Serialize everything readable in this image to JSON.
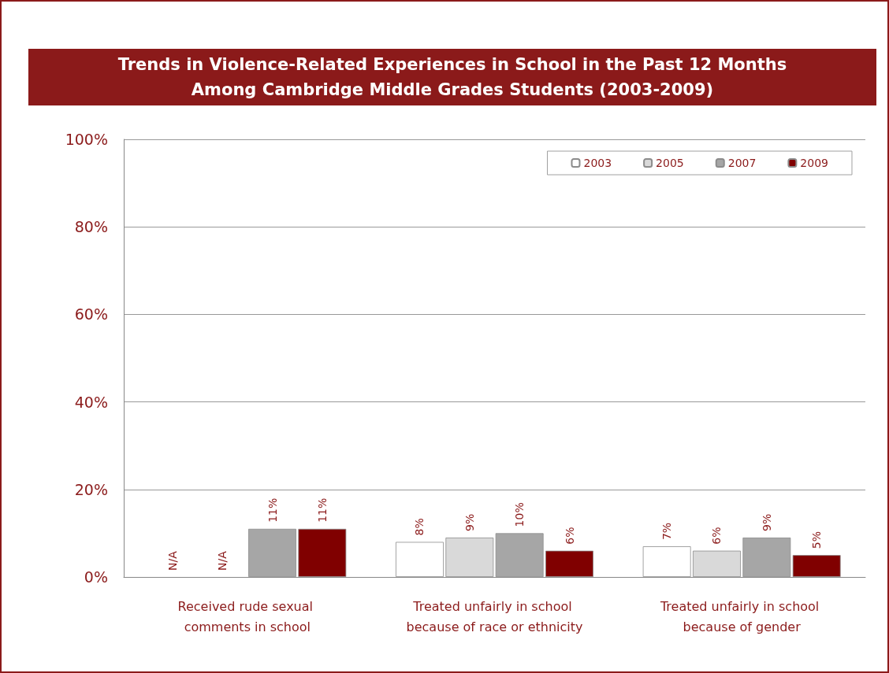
{
  "chart_data": {
    "type": "bar",
    "title": "Trends in Violence-Related Experiences in School in the Past 12 Months\nAmong Cambridge Middle Grades Students (2003-2009)",
    "categories": [
      "Received rude sexual comments in school",
      "Treated unfairly in school because of race or ethnicity",
      "Treated unfairly in school because of gender"
    ],
    "series": [
      {
        "name": "2003",
        "color": "#ffffff",
        "values": [
          null,
          8,
          7
        ],
        "value_labels": [
          "N/A",
          "8%",
          "7%"
        ]
      },
      {
        "name": "2005",
        "color": "#d9d9d9",
        "values": [
          null,
          9,
          6
        ],
        "value_labels": [
          "N/A",
          "9%",
          "6%"
        ]
      },
      {
        "name": "2007",
        "color": "#a6a6a6",
        "values": [
          11,
          10,
          9
        ],
        "value_labels": [
          "11%",
          "10%",
          "9%"
        ]
      },
      {
        "name": "2009",
        "color": "#800000",
        "values": [
          11,
          6,
          5
        ],
        "value_labels": [
          "11%",
          "6%",
          "5%"
        ]
      }
    ],
    "ylim": [
      0,
      100
    ],
    "yticks": [
      {
        "value": 0,
        "label": "0%"
      },
      {
        "value": 20,
        "label": "20%"
      },
      {
        "value": 40,
        "label": "40%"
      },
      {
        "value": 60,
        "label": "60%"
      },
      {
        "value": 80,
        "label": "80%"
      },
      {
        "value": 100,
        "label": "100%"
      }
    ],
    "grid": "y",
    "legend": "top right"
  }
}
